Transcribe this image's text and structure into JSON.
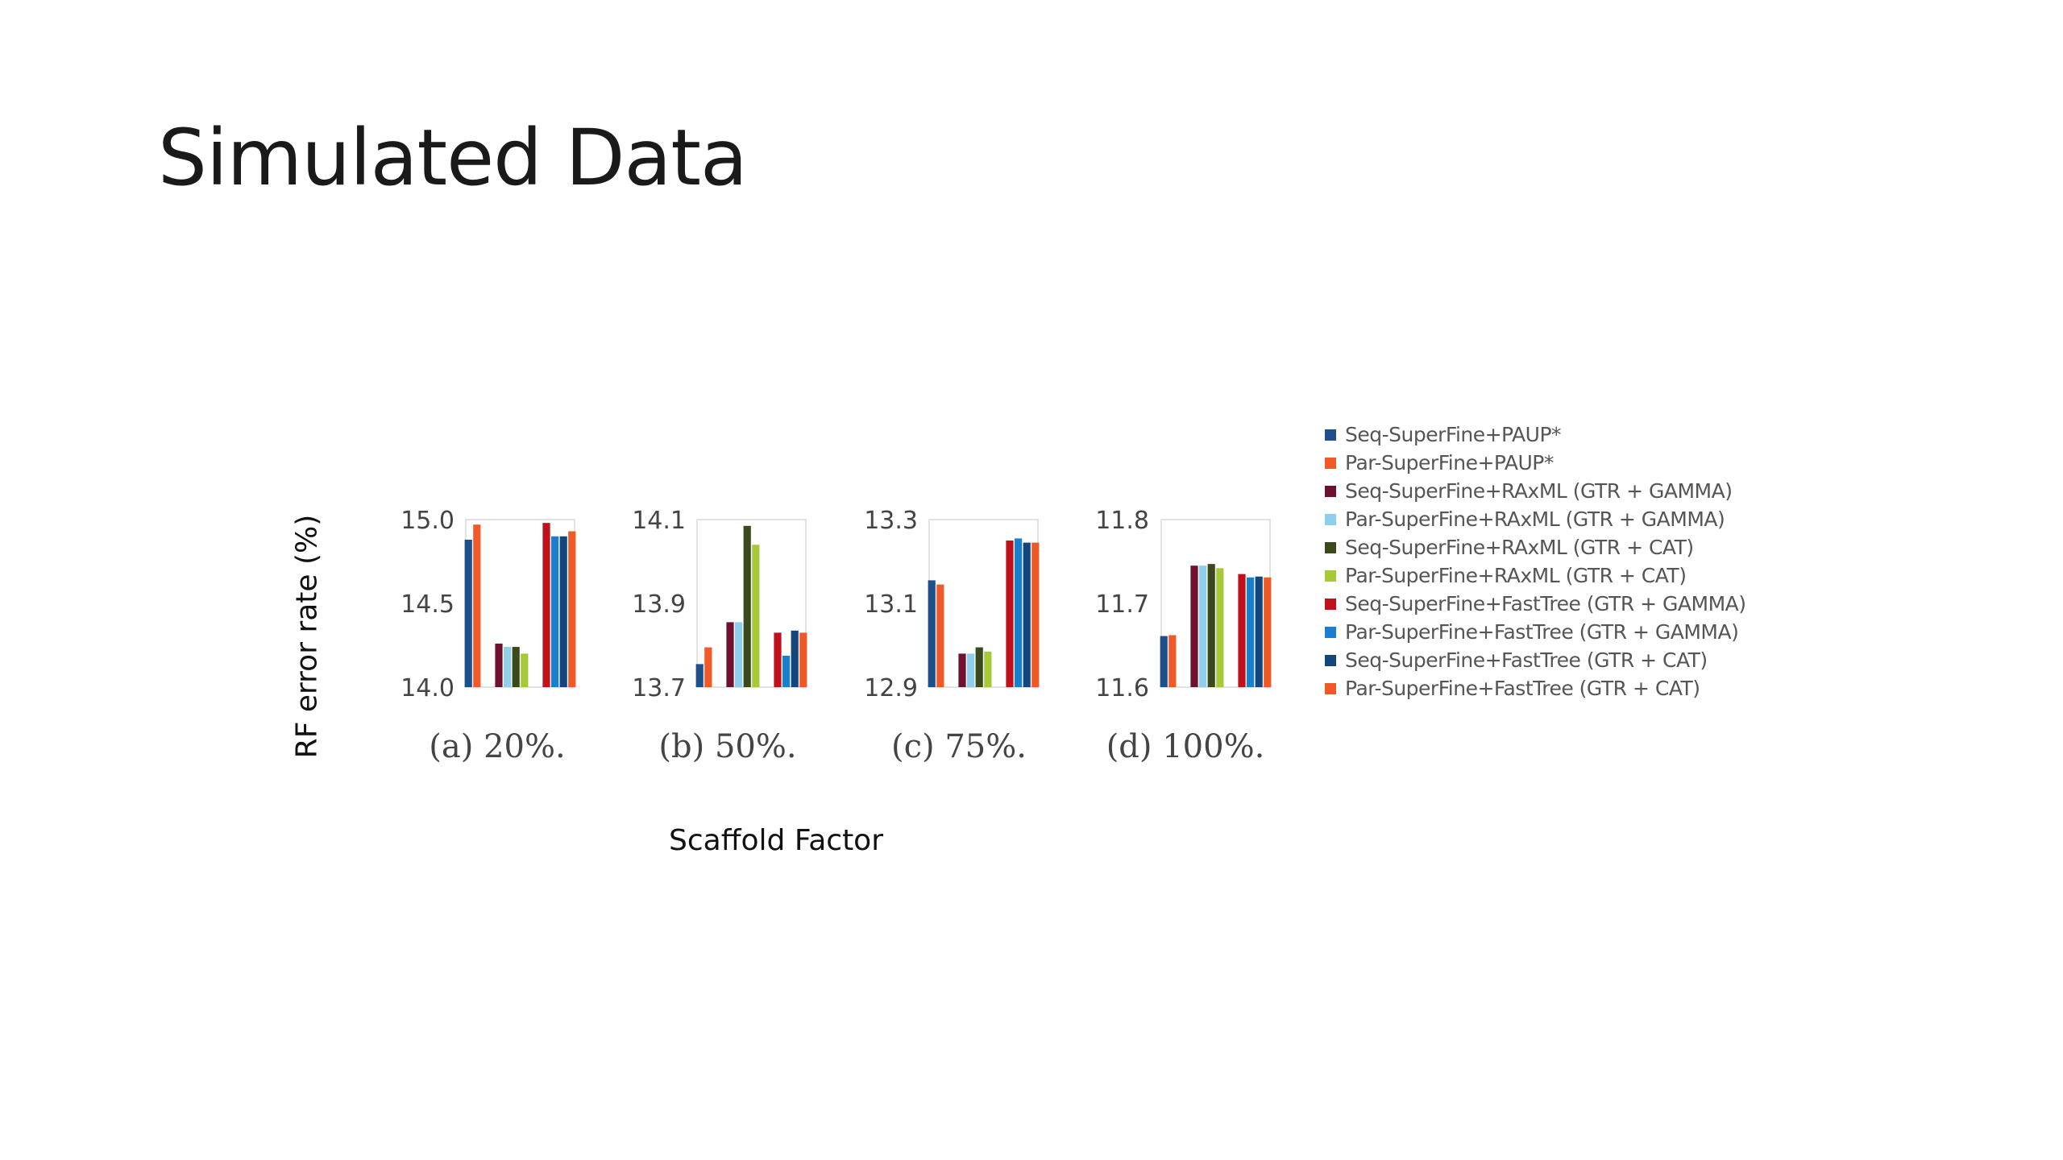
{
  "slide": {
    "title": "Simulated Data"
  },
  "colors": {
    "Seq-SuperFine+PAUP*": "#1f4e8c",
    "Par-SuperFine+PAUP*": "#f05a28",
    "Seq-SuperFine+RAxML (GTR + GAMMA)": "#6e1130",
    "Par-SuperFine+RAxML (GTR + GAMMA)": "#8fcfee",
    "Seq-SuperFine+RAxML (GTR + CAT)": "#3b4a1c",
    "Par-SuperFine+RAxML (GTR + CAT)": "#a6c93a",
    "Seq-SuperFine+FastTree (GTR + GAMMA)": "#c0121d",
    "Par-SuperFine+FastTree (GTR + GAMMA)": "#1b7fd0",
    "Seq-SuperFine+FastTree (GTR + CAT)": "#12467d",
    "Par-SuperFine+FastTree (GTR + CAT)": "#ee5a25"
  },
  "chart_data": {
    "type": "bar",
    "ylabel": "RF error rate (%)",
    "xlabel": "Scaffold Factor",
    "grid": false,
    "legend_position": "right",
    "series_names": [
      "Seq-SuperFine+PAUP*",
      "Par-SuperFine+PAUP*",
      "Seq-SuperFine+RAxML (GTR + GAMMA)",
      "Par-SuperFine+RAxML (GTR + GAMMA)",
      "Seq-SuperFine+RAxML (GTR + CAT)",
      "Par-SuperFine+RAxML (GTR + CAT)",
      "Seq-SuperFine+FastTree (GTR + GAMMA)",
      "Par-SuperFine+FastTree (GTR + GAMMA)",
      "Seq-SuperFine+FastTree (GTR + CAT)",
      "Par-SuperFine+FastTree (GTR + CAT)"
    ],
    "panels": [
      {
        "label": "(a) 20%.",
        "ylim": [
          14.0,
          15.0
        ],
        "yticks": [
          "15.0",
          "14.5",
          "14.0"
        ],
        "values": [
          14.88,
          14.97,
          14.26,
          14.24,
          14.24,
          14.2,
          14.98,
          14.9,
          14.9,
          14.93
        ]
      },
      {
        "label": "(b) 50%.",
        "ylim": [
          13.7,
          14.1
        ],
        "yticks": [
          "14.1",
          "13.9",
          "13.7"
        ],
        "values": [
          13.755,
          13.795,
          13.855,
          13.855,
          14.085,
          14.04,
          13.83,
          13.775,
          13.835,
          13.83
        ]
      },
      {
        "label": "(c) 75%.",
        "ylim": [
          12.9,
          13.3
        ],
        "yticks": [
          "13.3",
          "13.1",
          "12.9"
        ],
        "values": [
          13.155,
          13.145,
          12.98,
          12.98,
          12.995,
          12.985,
          13.25,
          13.255,
          13.245,
          13.245
        ]
      },
      {
        "label": "(d) 100%.",
        "ylim": [
          11.6,
          11.8
        ],
        "yticks": [
          "11.8",
          "11.7",
          "11.6"
        ],
        "values": [
          11.661,
          11.662,
          11.745,
          11.745,
          11.747,
          11.742,
          11.735,
          11.731,
          11.732,
          11.731
        ]
      }
    ]
  }
}
